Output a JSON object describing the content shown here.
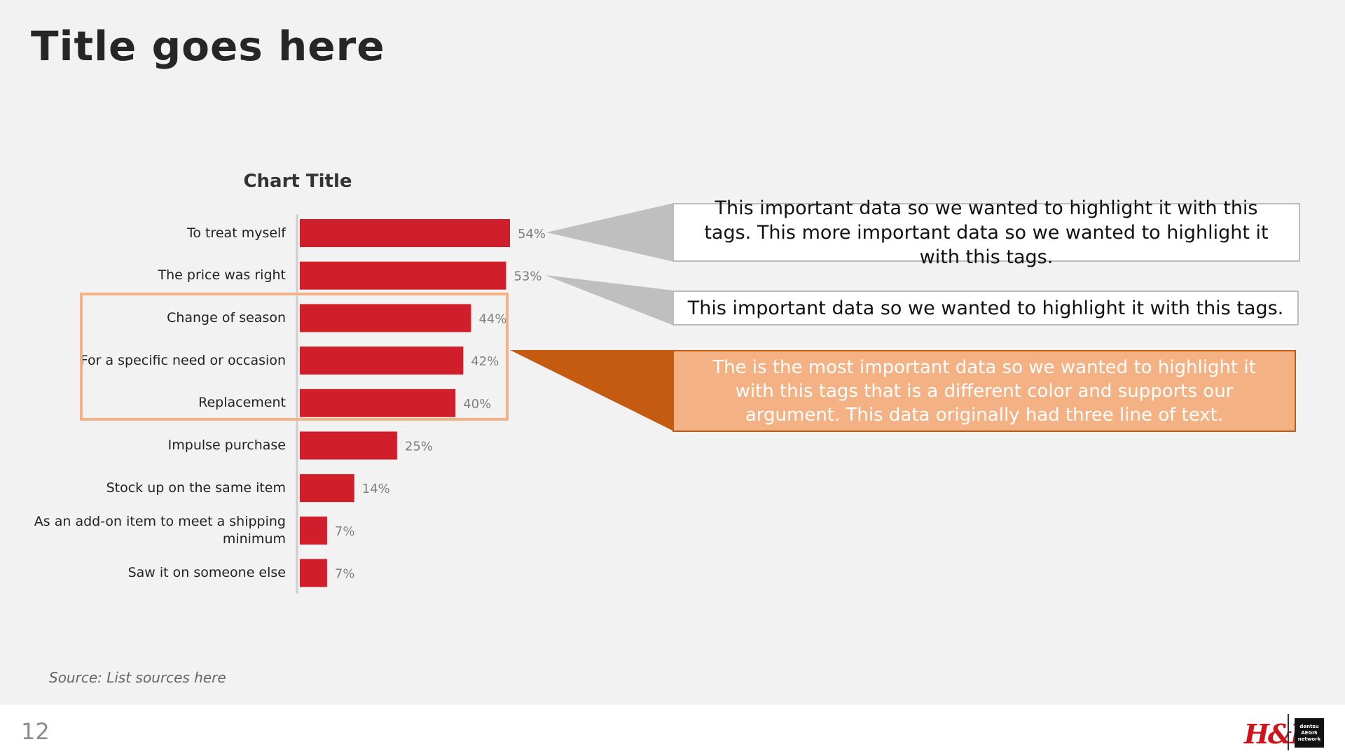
{
  "title": "Title goes here",
  "chart_data": {
    "type": "bar",
    "orientation": "horizontal",
    "title": "Chart Title",
    "categories": [
      "To treat myself",
      "The price was right",
      "Change of season",
      "For a specific need or occasion",
      "Replacement",
      "Impulse purchase",
      "Stock up on the same item",
      "As an add-on item to meet a shipping minimum",
      "Saw it on someone else"
    ],
    "values": [
      54,
      53,
      44,
      42,
      40,
      25,
      14,
      7,
      7
    ],
    "value_labels": [
      "54%",
      "53%",
      "44%",
      "42%",
      "40%",
      "25%",
      "14%",
      "7%",
      "7%"
    ],
    "bar_color": "#d01f2a",
    "xlim": [
      0,
      54
    ],
    "grid": false
  },
  "callouts": [
    {
      "text": "This important data so we wanted to highlight it with this tags. This more important data so we wanted to highlight it with this tags.",
      "style": "white"
    },
    {
      "text": "This important data so we wanted to highlight it with this tags.",
      "style": "white"
    },
    {
      "text": "The is the most important data so we wanted to highlight it with this tags that is a different color and supports our argument. This data originally had three line of text.",
      "style": "orange"
    }
  ],
  "colors": {
    "accent": "#d01f2a",
    "highlight_border": "#f4b183",
    "highlight_fill": "#f4b183",
    "highlight_dark": "#c55a11",
    "pointer_gray": "#bfbfbf"
  },
  "source": "Source: List sources here",
  "footer": {
    "page_number": "12",
    "brand_logo": "H&M",
    "agency_logo": [
      "dentsu",
      "AEGIS",
      "network"
    ]
  }
}
